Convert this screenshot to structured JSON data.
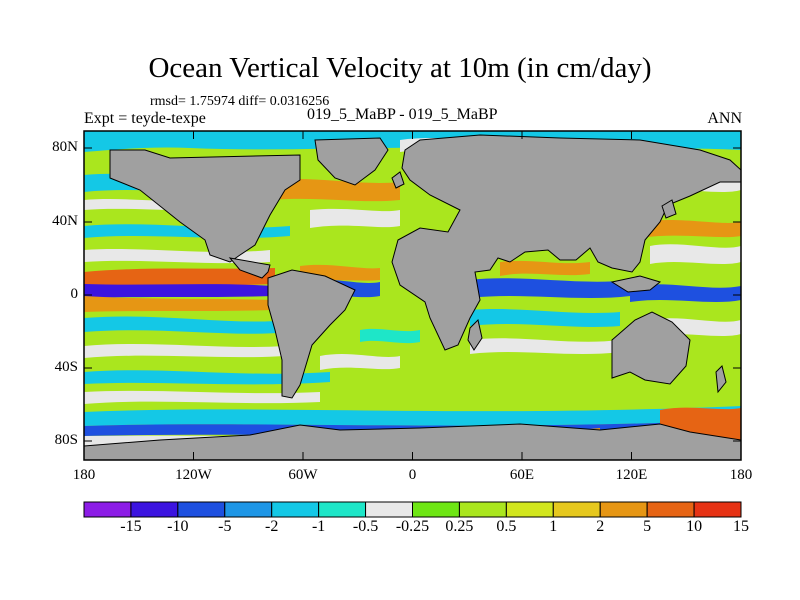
{
  "title": "Ocean Vertical Velocity at 10m (in cm/day)",
  "stats": "rmsd= 1.75974 diff= 0.0316256",
  "subtitle_left": "Expt = teyde-texpe",
  "subtitle_center": "019_5_MaBP - 019_5_MaBP",
  "subtitle_right": "ANN",
  "y_ticks": [
    "80N",
    "40N",
    "0",
    "40S",
    "80S"
  ],
  "x_ticks": [
    "180",
    "120W",
    "60W",
    "0",
    "60E",
    "120E",
    "180"
  ],
  "colorbar": {
    "labels": [
      "-15",
      "-10",
      "-5",
      "-2",
      "-1",
      "-0.5",
      "-0.25",
      "0.25",
      "0.5",
      "1",
      "2",
      "5",
      "10",
      "15"
    ],
    "colors": [
      "#8c1ce6",
      "#3c14e0",
      "#1e50e0",
      "#1e96e6",
      "#14c8e6",
      "#1ee6c8",
      "#e8e8e8",
      "#6ee614",
      "#aae61e",
      "#d2e61e",
      "#e6c81e",
      "#e69614",
      "#e66414",
      "#e63214"
    ]
  },
  "map_colors": {
    "land": "#a0a0a0",
    "ocean_background": "#aae61e"
  },
  "chart_data": {
    "type": "heatmap",
    "title": "Ocean Vertical Velocity at 10m (in cm/day)",
    "x_range": [
      -180,
      180
    ],
    "y_range": [
      -90,
      90
    ],
    "x_ticks": [
      "180",
      "120W",
      "60W",
      "0",
      "60E",
      "120E",
      "180"
    ],
    "y_ticks": [
      "80N",
      "40N",
      "0",
      "40S",
      "80S"
    ],
    "levels": [
      -15,
      -10,
      -5,
      -2,
      -1,
      -0.5,
      -0.25,
      0.25,
      0.5,
      1,
      2,
      5,
      10,
      15
    ]
  }
}
